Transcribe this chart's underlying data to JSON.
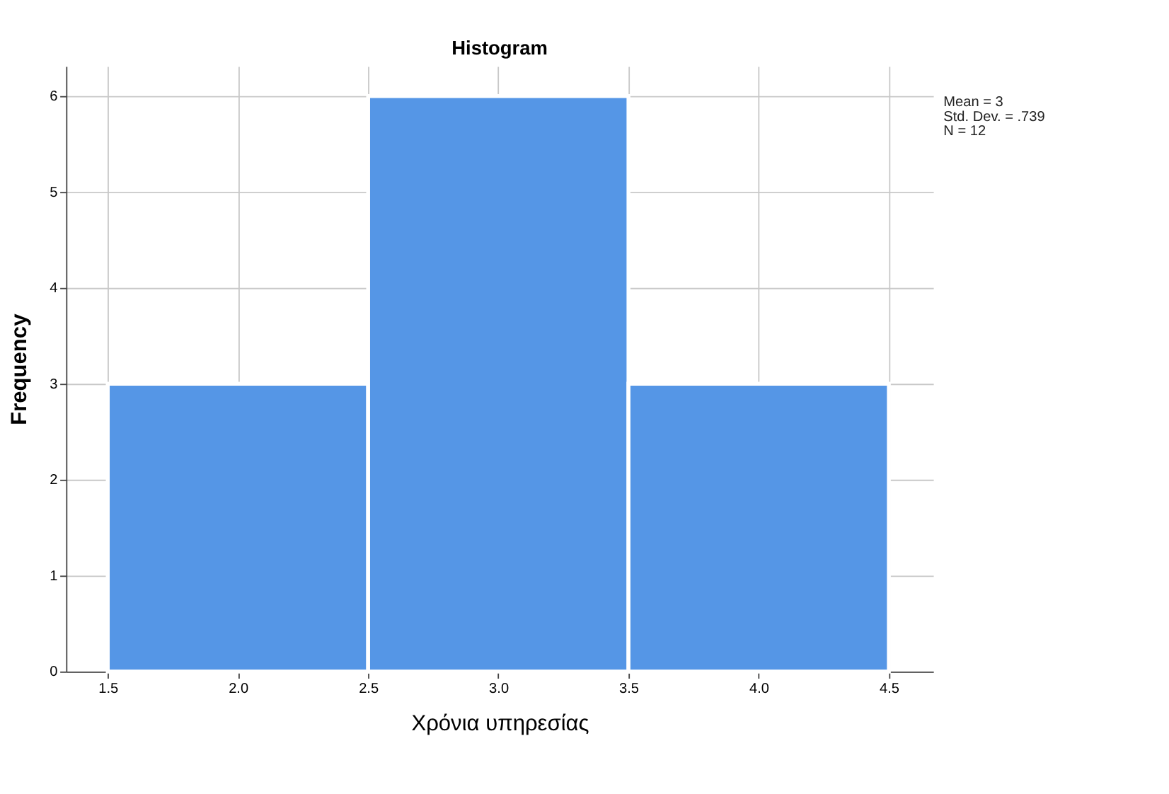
{
  "chart_data": {
    "type": "histogram",
    "title": "Histogram",
    "xlabel": "Χρόνια υπηρεσίας",
    "ylabel": "Frequency",
    "bins": [
      1.5,
      2.5,
      3.5,
      4.5
    ],
    "values": [
      3,
      6,
      3
    ],
    "color": "#5596e6",
    "xlim": [
      1.34,
      4.67
    ],
    "xticks": [
      1.5,
      {
        "value": 2,
        "label": "2.0"
      },
      2.5,
      {
        "value": 3,
        "label": "3.0"
      },
      3.5,
      {
        "value": 4,
        "label": "4.0"
      },
      4.5
    ],
    "ylim": [
      0,
      6.31
    ],
    "yticks": [
      0,
      1,
      2,
      3,
      4,
      5,
      6
    ],
    "grid": true,
    "annotations": [
      "Mean = 3",
      "Std. Dev. = .739",
      "N = 12"
    ]
  }
}
